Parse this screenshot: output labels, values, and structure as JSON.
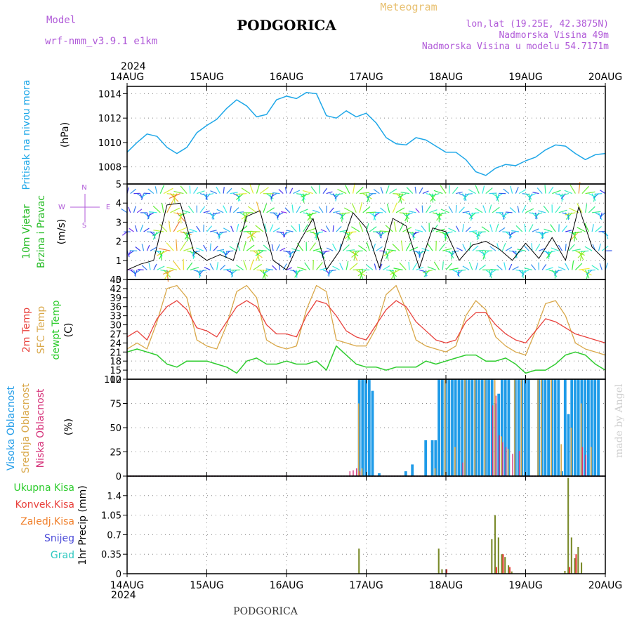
{
  "header": {
    "model_label": "Model",
    "model_name": "wrf-nmm_v3.9.1 e1km",
    "title": "PODGORICA",
    "subtitle": "Meteogram",
    "lonlat": "lon,lat (19.25E, 42.3875N)",
    "elevation": "Nadmorska Visina 49m",
    "model_elevation": "Nadmorska Visina u modelu 54.7171m",
    "year": "2024",
    "footer_title": "PODGORICA",
    "watermark": "made by Angel"
  },
  "colors": {
    "pressure": "#1ea7e8",
    "temp2m": "#e8413c",
    "sfc_temp": "#d9a84a",
    "dewpt": "#2ecc2e",
    "high_cloud": "#1e9be8",
    "mid_cloud": "#d9a84a",
    "low_cloud": "#d6337a",
    "total_precip": "#2ecc2e",
    "conv_precip": "#e8413c",
    "strat_precip": "#f07f2a",
    "snow": "#4b4bd8",
    "hail": "#2ec8c0",
    "wind_label": "#22bb22",
    "legend_purple": "#b05ad8",
    "watermark": "#cfcfcf"
  },
  "chart_data": [
    {
      "type": "line",
      "panel": "pressure",
      "ylabel": "Pritisak na nivou mora",
      "unit": "(hPa)",
      "x_ticks": [
        "14AUG",
        "15AUG",
        "16AUG",
        "17AUG",
        "18AUG",
        "19AUG",
        "20AUG"
      ],
      "y_ticks": [
        1008,
        1010,
        1012,
        1014
      ],
      "ylim": [
        1006.6,
        1014.6
      ],
      "x_hours": [
        0,
        3,
        6,
        9,
        12,
        15,
        18,
        21,
        24,
        27,
        30,
        33,
        36,
        39,
        42,
        45,
        48,
        51,
        54,
        57,
        60,
        63,
        66,
        69,
        72,
        75,
        78,
        81,
        84,
        87,
        90,
        93,
        96,
        99,
        102,
        105,
        108,
        111,
        114,
        117,
        120,
        123,
        126,
        129,
        132,
        135,
        138,
        141,
        144
      ],
      "series": [
        {
          "values": [
            1009.2,
            1010.0,
            1010.7,
            1010.5,
            1009.6,
            1009.1,
            1009.6,
            1010.8,
            1011.4,
            1011.9,
            1012.8,
            1013.5,
            1013.0,
            1012.1,
            1012.3,
            1013.5,
            1013.8,
            1013.6,
            1014.1,
            1014.0,
            1012.2,
            1012.0,
            1012.6,
            1012.1,
            1012.4,
            1011.6,
            1010.4,
            1009.9,
            1009.8,
            1010.4,
            1010.2,
            1009.7,
            1009.2,
            1009.2,
            1008.6,
            1007.6,
            1007.3,
            1007.9,
            1008.2,
            1008.1,
            1008.5,
            1008.8,
            1009.4,
            1009.8,
            1009.7,
            1009.1,
            1008.6,
            1009.0,
            1009.1
          ]
        }
      ]
    },
    {
      "type": "line",
      "panel": "wind",
      "ylabel": "10m Vjetar Brzina i Pravac",
      "unit": "(m/s)",
      "compass": {
        "n": "N",
        "s": "S",
        "e": "E",
        "w": "W"
      },
      "y_ticks": [
        0,
        1,
        2,
        3,
        4,
        5
      ],
      "ylim": [
        0,
        5
      ],
      "x_hours": [
        0,
        4,
        8,
        12,
        16,
        20,
        24,
        28,
        32,
        36,
        40,
        44,
        48,
        52,
        56,
        60,
        64,
        68,
        72,
        76,
        80,
        84,
        88,
        92,
        96,
        100,
        104,
        108,
        112,
        116,
        120,
        124,
        128,
        132,
        136,
        140,
        144
      ],
      "series": [
        {
          "values": [
            0.5,
            0.8,
            1.0,
            3.9,
            4.0,
            1.5,
            1.0,
            1.3,
            1.0,
            3.3,
            3.6,
            1.0,
            0.5,
            2.0,
            3.2,
            0.5,
            1.5,
            3.5,
            2.7,
            0.6,
            3.2,
            2.8,
            0.6,
            2.7,
            2.5,
            1.0,
            1.8,
            2.0,
            1.6,
            1.0,
            1.9,
            1.1,
            2.2,
            1.0,
            3.8,
            1.7,
            1.0
          ]
        }
      ]
    },
    {
      "type": "line",
      "panel": "temperature",
      "ylabel": [
        "2m Temp",
        "SFC Temp",
        "dewpt Temp"
      ],
      "unit": "(C)",
      "y_ticks": [
        12,
        15,
        18,
        21,
        24,
        27,
        30,
        33,
        36,
        39,
        42,
        45
      ],
      "ylim": [
        12,
        45
      ],
      "x_hours": [
        0,
        3,
        6,
        9,
        12,
        15,
        18,
        21,
        24,
        27,
        30,
        33,
        36,
        39,
        42,
        45,
        48,
        51,
        54,
        57,
        60,
        63,
        66,
        69,
        72,
        75,
        78,
        81,
        84,
        87,
        90,
        93,
        96,
        99,
        102,
        105,
        108,
        111,
        114,
        117,
        120,
        123,
        126,
        129,
        132,
        135,
        138,
        141,
        144
      ],
      "series": [
        {
          "values": [
            26,
            28,
            25,
            32,
            36,
            38,
            35,
            29,
            28,
            26,
            31,
            36,
            38,
            36,
            30,
            27,
            27,
            26,
            33,
            38,
            37,
            33,
            28,
            26,
            25,
            30,
            35,
            38,
            36,
            31,
            28,
            25,
            24,
            25,
            31,
            34,
            34,
            30,
            27,
            25,
            24,
            28,
            32,
            31,
            29,
            27,
            26,
            25,
            24
          ]
        },
        {
          "values": [
            22,
            24,
            22,
            31,
            42,
            43,
            39,
            25,
            23,
            22,
            30,
            41,
            43,
            39,
            25,
            23,
            22,
            23,
            35,
            43,
            41,
            25,
            24,
            23,
            23,
            29,
            40,
            43,
            35,
            25,
            23,
            22,
            21,
            23,
            33,
            38,
            35,
            26,
            23,
            21,
            20,
            28,
            37,
            38,
            33,
            24,
            22,
            21,
            20
          ]
        },
        {
          "values": [
            21,
            22,
            21,
            20,
            17,
            16,
            18,
            18,
            18,
            17,
            16,
            14,
            18,
            19,
            17,
            17,
            18,
            17,
            17,
            18,
            15,
            23,
            20,
            17,
            16,
            16,
            15,
            16,
            16,
            16,
            18,
            17,
            18,
            19,
            20,
            20,
            18,
            18,
            19,
            17,
            14,
            15,
            15,
            17,
            20,
            21,
            20,
            17,
            15
          ]
        }
      ]
    },
    {
      "type": "bar",
      "panel": "clouds",
      "ylabel": [
        "Visoka Oblacnost",
        "Srednja Oblacnost",
        "Niska Oblacnost"
      ],
      "unit": "(%)",
      "y_ticks": [
        0,
        25,
        50,
        75,
        100
      ],
      "ylim": [
        0,
        100
      ],
      "series": [
        {
          "hours": [
            70,
            71,
            72,
            73,
            74,
            76,
            84,
            86,
            90,
            92,
            93,
            94,
            95,
            96,
            97,
            98,
            99,
            100,
            101,
            102,
            103,
            104,
            105,
            106,
            107,
            108,
            109,
            110,
            111,
            112,
            113,
            114,
            115,
            117,
            118,
            119,
            120,
            121,
            124,
            125,
            126,
            127,
            128,
            129,
            130,
            131,
            132,
            133,
            134,
            135,
            136,
            137,
            138,
            139,
            140,
            141,
            142
          ],
          "values": [
            100,
            100,
            100,
            100,
            88,
            3,
            5,
            12,
            37,
            37,
            37,
            100,
            100,
            100,
            100,
            100,
            100,
            100,
            100,
            100,
            100,
            100,
            100,
            100,
            100,
            100,
            100,
            100,
            75,
            85,
            100,
            100,
            100,
            100,
            100,
            100,
            100,
            100,
            100,
            100,
            100,
            100,
            100,
            100,
            100,
            5,
            100,
            64,
            100,
            100,
            100,
            100,
            100,
            100,
            100,
            100,
            100
          ]
        },
        {
          "hours": [
            70,
            71,
            93,
            96,
            99,
            102,
            105,
            108,
            111,
            113,
            115,
            117,
            119,
            124,
            125,
            128,
            131,
            134,
            137,
            140
          ],
          "values": [
            75,
            8,
            8,
            100,
            30,
            100,
            100,
            100,
            100,
            41,
            28,
            100,
            100,
            100,
            100,
            100,
            33,
            50,
            75,
            30
          ]
        },
        {
          "hours": [
            67,
            68,
            69,
            70,
            101,
            110,
            111,
            112,
            113,
            114,
            116,
            118,
            137,
            138
          ],
          "values": [
            5,
            6,
            8,
            5,
            14,
            73,
            83,
            42,
            35,
            30,
            23,
            26,
            30,
            22
          ]
        }
      ]
    },
    {
      "type": "bar",
      "panel": "precipitation",
      "ylabel": "1hr Precip",
      "unit": "(mm)",
      "legend": [
        "Ukupna Kisa",
        "Konvek.Kisa",
        "Zaledj.Kisa",
        "Snijeg",
        "Grad"
      ],
      "y_ticks": [
        0,
        0.35,
        0.7,
        1.05,
        1.4
      ],
      "ylim": [
        0,
        1.75
      ],
      "series": [
        {
          "hours": [
            70,
            94,
            95,
            110,
            111,
            112,
            113,
            114,
            115,
            116,
            132,
            133,
            134,
            135,
            136,
            137
          ],
          "values": [
            0.45,
            0.45,
            0.08,
            0.62,
            1.05,
            0.65,
            0.35,
            0.3,
            0.15,
            0.04,
            0.05,
            1.72,
            0.65,
            0.28,
            0.48,
            0.2
          ]
        },
        {
          "hours": [
            96,
            111,
            113,
            115,
            133,
            135
          ],
          "values": [
            0.08,
            0.12,
            0.35,
            0.12,
            0.12,
            0.35
          ]
        }
      ]
    }
  ]
}
